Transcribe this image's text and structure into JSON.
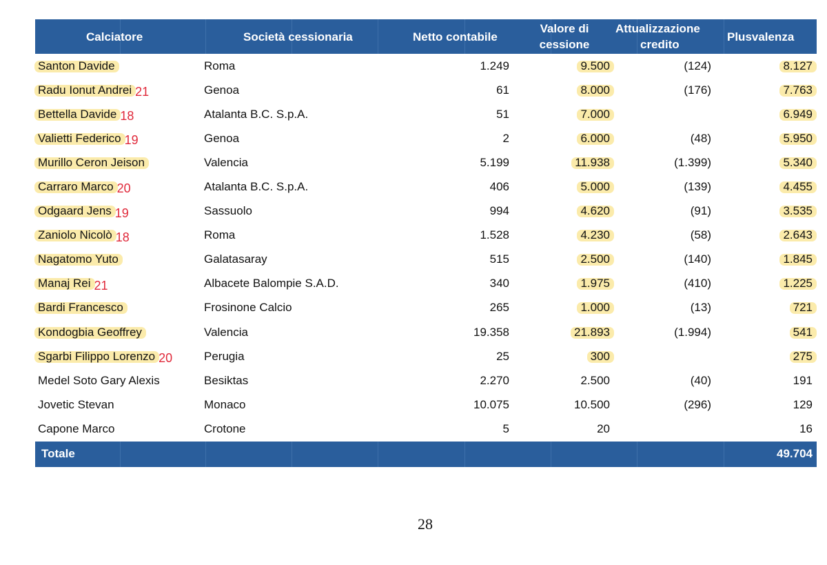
{
  "table": {
    "headers": {
      "player": "Calciatore",
      "club": "Società cessionaria",
      "book_value": "Netto contabile",
      "sale_value_line1": "Valore di",
      "sale_value_line2": "cessione",
      "credit_line1": "Attualizzazione",
      "credit_line2": "credito",
      "gain": "Plusvalenza"
    },
    "rows": [
      {
        "player": "Santon Davide",
        "age": "",
        "club": "Roma",
        "book": "1.249",
        "sale": "9.500",
        "credit": "(124)",
        "gain": "8.127"
      },
      {
        "player": "Radu Ionut Andrei",
        "age": "21",
        "club": "Genoa",
        "book": "61",
        "sale": "8.000",
        "credit": "(176)",
        "gain": "7.763"
      },
      {
        "player": "Bettella Davide",
        "age": "18",
        "club": "Atalanta B.C. S.p.A.",
        "book": "51",
        "sale": "7.000",
        "credit": "",
        "gain": "6.949"
      },
      {
        "player": "Valietti Federico",
        "age": "19",
        "club": "Genoa",
        "book": "2",
        "sale": "6.000",
        "credit": "(48)",
        "gain": "5.950"
      },
      {
        "player": "Murillo Ceron Jeison",
        "age": "",
        "club": "Valencia",
        "book": "5.199",
        "sale": "11.938",
        "credit": "(1.399)",
        "gain": "5.340"
      },
      {
        "player": "Carraro Marco",
        "age": "20",
        "club": "Atalanta B.C. S.p.A.",
        "book": "406",
        "sale": "5.000",
        "credit": "(139)",
        "gain": "4.455"
      },
      {
        "player": "Odgaard Jens",
        "age": "19",
        "club": "Sassuolo",
        "book": "994",
        "sale": "4.620",
        "credit": "(91)",
        "gain": "3.535"
      },
      {
        "player": "Zaniolo Nicolò",
        "age": "18",
        "club": "Roma",
        "book": "1.528",
        "sale": "4.230",
        "credit": "(58)",
        "gain": "2.643"
      },
      {
        "player": "Nagatomo Yuto",
        "age": "",
        "club": "Galatasaray",
        "book": "515",
        "sale": "2.500",
        "credit": "(140)",
        "gain": "1.845"
      },
      {
        "player": "Manaj Rei",
        "age": "21",
        "club": "Albacete Balompie S.A.D.",
        "book": "340",
        "sale": "1.975",
        "credit": "(410)",
        "gain": "1.225"
      },
      {
        "player": "Bardi Francesco",
        "age": "",
        "club": "Frosinone Calcio",
        "book": "265",
        "sale": "1.000",
        "credit": "(13)",
        "gain": "721"
      },
      {
        "player": "Kondogbia Geoffrey",
        "age": "",
        "club": "Valencia",
        "book": "19.358",
        "sale": "21.893",
        "credit": "(1.994)",
        "gain": "541"
      },
      {
        "player": "Sgarbi Filippo Lorenzo",
        "age": "20",
        "club": "Perugia",
        "book": "25",
        "sale": "300",
        "credit": "",
        "gain": "275"
      },
      {
        "player": "Medel Soto Gary Alexis",
        "age": "",
        "club": "Besiktas",
        "book": "2.270",
        "sale": "2.500",
        "credit": "(40)",
        "gain": "191"
      },
      {
        "player": "Jovetic Stevan",
        "age": "",
        "club": "Monaco",
        "book": "10.075",
        "sale": "10.500",
        "credit": "(296)",
        "gain": "129"
      },
      {
        "player": "Capone Marco",
        "age": "",
        "club": "Crotone",
        "book": "5",
        "sale": "20",
        "credit": "",
        "gain": "16"
      }
    ],
    "highlighted_rows": 13,
    "highlight_color": "#fbeaa6",
    "annotation_color": "#e0293a",
    "header_color": "#2a5e9c",
    "total_label": "Totale",
    "total_value": "49.704"
  },
  "page_number": "28"
}
